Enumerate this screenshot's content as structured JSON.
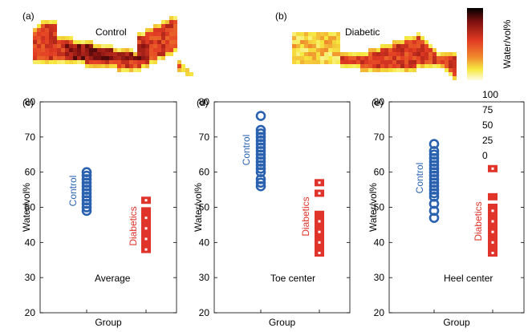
{
  "heatmaps": [
    {
      "panel": "(a)",
      "label": "Control"
    },
    {
      "panel": "(b)",
      "label": "Diabetic"
    }
  ],
  "colorbar": {
    "title": "Water/vol%",
    "ticks": [
      "100",
      "75",
      "50",
      "25",
      "0"
    ],
    "colors": [
      "#000000",
      "#7a0f0f",
      "#e23b24",
      "#f08a2c",
      "#f6e940",
      "#fdfbe3"
    ]
  },
  "colors": {
    "control": "#2a62b0",
    "diabetic": "#e0342a"
  },
  "chart_data": [
    {
      "type": "scatter",
      "panel": "(c)",
      "annotation": "Average",
      "xlabel": "Group",
      "ylabel": "Water/vol%",
      "ylim": [
        20,
        80
      ],
      "yticks": [
        20,
        30,
        40,
        50,
        60,
        70,
        80
      ],
      "series": [
        {
          "name": "Control",
          "values": [
            49,
            50,
            51,
            52,
            53,
            54,
            55,
            56,
            57,
            58,
            59,
            60
          ]
        },
        {
          "name": "Diabetics",
          "values": [
            38,
            39,
            40,
            41,
            42,
            43,
            44,
            45,
            46,
            47,
            48,
            49,
            52
          ]
        }
      ]
    },
    {
      "type": "scatter",
      "panel": "(d)",
      "annotation": "Toe center",
      "xlabel": "Group",
      "ylabel": "Water/vol%",
      "ylim": [
        20,
        80
      ],
      "yticks": [
        20,
        30,
        40,
        50,
        60,
        70,
        80
      ],
      "series": [
        {
          "name": "Control",
          "values": [
            56,
            57,
            58,
            60,
            61,
            62,
            63,
            64,
            65,
            66,
            67,
            68,
            69,
            70,
            71,
            72,
            76
          ]
        },
        {
          "name": "Diabetics",
          "values": [
            37,
            38,
            39,
            40,
            41,
            42,
            43,
            44,
            45,
            46,
            47,
            48,
            54,
            57
          ]
        }
      ]
    },
    {
      "type": "scatter",
      "panel": "(e)",
      "annotation": "Heel center",
      "xlabel": "Group",
      "ylabel": "Water/vol%",
      "ylim": [
        20,
        80
      ],
      "yticks": [
        20,
        30,
        40,
        50,
        60,
        70,
        80
      ],
      "series": [
        {
          "name": "Control",
          "values": [
            47,
            49,
            51,
            53,
            54,
            55,
            56,
            57,
            58,
            59,
            60,
            61,
            62,
            63,
            64,
            65,
            66,
            68
          ]
        },
        {
          "name": "Diabetics",
          "values": [
            37,
            38,
            39,
            40,
            41,
            42,
            43,
            44,
            45,
            46,
            47,
            48,
            49,
            50,
            53,
            61
          ]
        }
      ]
    }
  ]
}
